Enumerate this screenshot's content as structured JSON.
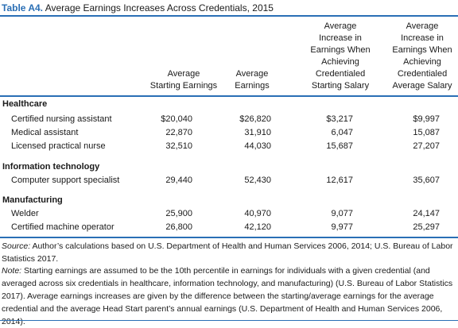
{
  "title": {
    "label": "Table A4.",
    "text": "Average Earnings Increases Across Credentials, 2015"
  },
  "columns": [
    "Average\nStarting Earnings",
    "Average\nEarnings",
    "Average\nIncrease in\nEarnings When\nAchieving\nCredentialed\nStarting Salary",
    "Average\nIncrease in\nEarnings When\nAchieving\nCredentialed\nAverage Salary"
  ],
  "categories": [
    {
      "name": "Healthcare",
      "rows": [
        {
          "label": "Certified nursing assistant",
          "values": [
            "$20,040",
            "$26,820",
            "$3,217",
            "$9,997"
          ]
        },
        {
          "label": "Medical assistant",
          "values": [
            "22,870",
            "31,910",
            "6,047",
            "15,087"
          ]
        },
        {
          "label": "Licensed practical nurse",
          "values": [
            "32,510",
            "44,030",
            "15,687",
            "27,207"
          ]
        }
      ]
    },
    {
      "name": "Information technology",
      "rows": [
        {
          "label": "Computer support specialist",
          "values": [
            "29,440",
            "52,430",
            "12,617",
            "35,607"
          ]
        }
      ]
    },
    {
      "name": "Manufacturing",
      "rows": [
        {
          "label": "Welder",
          "values": [
            "25,900",
            "40,970",
            "9,077",
            "24,147"
          ]
        },
        {
          "label": "Certified machine operator",
          "values": [
            "26,800",
            "42,120",
            "9,977",
            "25,297"
          ]
        }
      ]
    }
  ],
  "source": {
    "label": "Source:",
    "text": " Author’s calculations based on U.S. Department of Health and Human Services 2006, 2014; U.S. Bureau of Labor Statistics 2017."
  },
  "note": {
    "label": "Note:",
    "text": " Starting earnings are assumed to be the 10th percentile in earnings for individuals with a given credential (and averaged across six credentials in healthcare, information technology, and manufacturing) (U.S. Bureau of Labor Statistics 2017). Average earnings increases are given by the difference between the starting/average earnings for the average credential and the average Head Start parent’s annual earnings (U.S. Department of Health and Human Services 2006, 2014)."
  }
}
